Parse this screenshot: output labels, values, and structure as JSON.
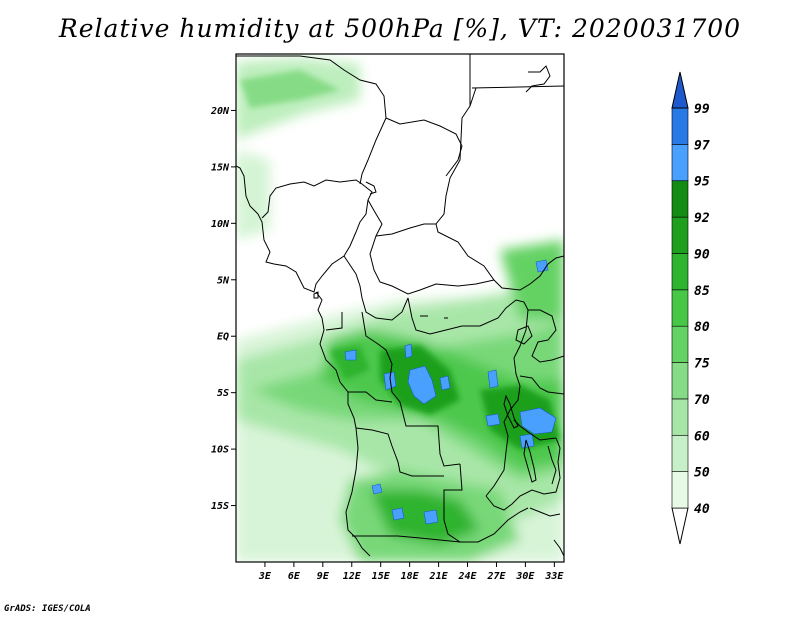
{
  "title": "Relative humidity at 500hPa [%], VT: 2020031700",
  "credit": "GrADS: IGES/COLA",
  "map": {
    "lon_range": [
      0,
      34
    ],
    "lat_range": [
      -20,
      25
    ],
    "lon_ticks": [
      "3E",
      "6E",
      "9E",
      "12E",
      "15E",
      "18E",
      "21E",
      "24E",
      "27E",
      "30E",
      "33E"
    ],
    "lat_ticks": [
      "20N",
      "15N",
      "10N",
      "5N",
      "EQ",
      "5S",
      "10S",
      "15S"
    ]
  },
  "colorbar": {
    "labels": [
      "40",
      "50",
      "60",
      "70",
      "75",
      "80",
      "85",
      "90",
      "92",
      "95",
      "97",
      "99"
    ],
    "colors": [
      "#ffffff",
      "#e6fae6",
      "#c8f0c8",
      "#a8e6a8",
      "#86dc86",
      "#64d264",
      "#46c846",
      "#2eb42e",
      "#1ea01e",
      "#148c14",
      "#4aa0ff",
      "#2878e6",
      "#1e5acd"
    ]
  }
}
